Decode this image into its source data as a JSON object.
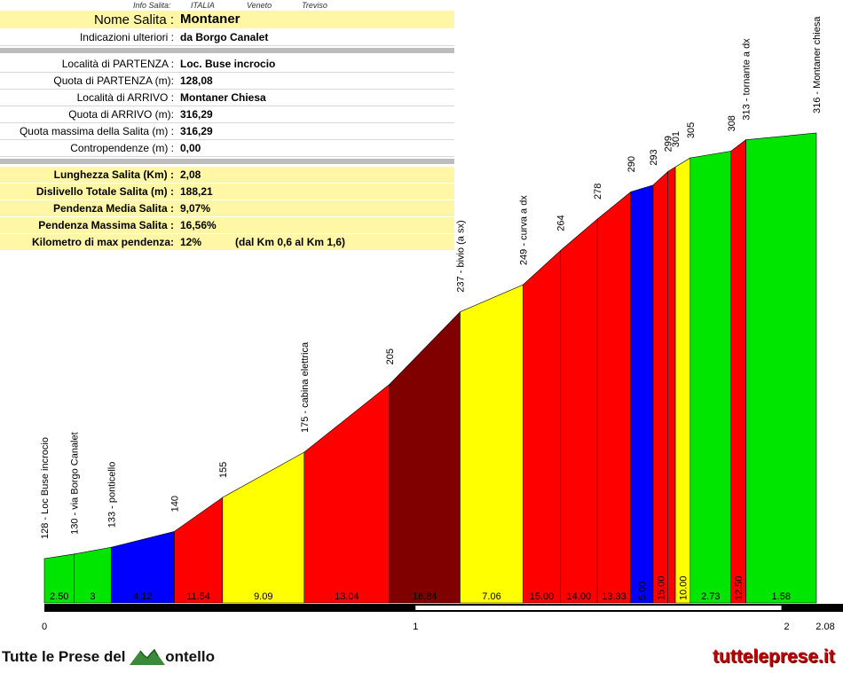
{
  "header": {
    "info_label": "Info Salita:",
    "country": "ITALIA",
    "region": "Veneto",
    "province": "Treviso"
  },
  "climb": {
    "name_label": "Nome Salita :",
    "name": "Montaner",
    "extra_label": "Indicazioni ulteriori :",
    "extra": "da Borgo Canalet",
    "start_place_label": "Località di PARTENZA :",
    "start_place": "Loc. Buse incrocio",
    "start_alt_label": "Quota di PARTENZA (m):",
    "start_alt": "128,08",
    "end_place_label": "Località di ARRIVO :",
    "end_place": "Montaner Chiesa",
    "end_alt_label": "Quota di ARRIVO (m):",
    "end_alt": "316,29",
    "max_alt_label": "Quota massima della Salita (m) :",
    "max_alt": "316,29",
    "counter_label": "Contropendenze (m) :",
    "counter": "0,00"
  },
  "stats": {
    "length_label": "Lunghezza Salita (Km) :",
    "length": "2,08",
    "gain_label": "Dislivello Totale Salita (m) :",
    "gain": "188,21",
    "avg_label": "Pendenza Media Salita :",
    "avg": "9,07%",
    "max_label": "Pendenza Massima Salita :",
    "max": "16,56%",
    "maxkm_label": "Kilometro di max pendenza:",
    "maxkm": "12%",
    "maxkm_note": "(dal Km 0,6 al Km 1,6)"
  },
  "chart_data": {
    "type": "area",
    "x_ticks": [
      "0",
      "1",
      "2",
      "2.08"
    ],
    "x_tick_values": [
      0,
      1,
      2,
      2.08
    ],
    "segments": [
      {
        "x0": 0.0,
        "x1": 0.08,
        "y0": 128,
        "y1": 130,
        "grade": "2.50",
        "color": "#00e600"
      },
      {
        "x0": 0.08,
        "x1": 0.18,
        "y0": 130,
        "y1": 133,
        "grade": "3",
        "color": "#00e600"
      },
      {
        "x0": 0.18,
        "x1": 0.35,
        "y0": 133,
        "y1": 140,
        "grade": "4.12",
        "color": "#0000ff"
      },
      {
        "x0": 0.35,
        "x1": 0.48,
        "y0": 140,
        "y1": 155,
        "grade": "11.54",
        "color": "#ff0000"
      },
      {
        "x0": 0.48,
        "x1": 0.7,
        "y0": 155,
        "y1": 175,
        "grade": "9.09",
        "color": "#ffff00"
      },
      {
        "x0": 0.7,
        "x1": 0.93,
        "y0": 175,
        "y1": 205,
        "grade": "13.04",
        "color": "#ff0000"
      },
      {
        "x0": 0.93,
        "x1": 1.12,
        "y0": 205,
        "y1": 237,
        "grade": "16.84",
        "color": "#800000"
      },
      {
        "x0": 1.12,
        "x1": 1.29,
        "y0": 237,
        "y1": 249,
        "grade": "7.06",
        "color": "#ffff00"
      },
      {
        "x0": 1.29,
        "x1": 1.39,
        "y0": 249,
        "y1": 264,
        "grade": "15.00",
        "color": "#ff0000"
      },
      {
        "x0": 1.39,
        "x1": 1.49,
        "y0": 264,
        "y1": 278,
        "grade": "14.00",
        "color": "#ff0000"
      },
      {
        "x0": 1.49,
        "x1": 1.58,
        "y0": 278,
        "y1": 290,
        "grade": "13.33",
        "color": "#ff0000"
      },
      {
        "x0": 1.58,
        "x1": 1.64,
        "y0": 290,
        "y1": 293,
        "grade": "5.00",
        "color": "#0000ff"
      },
      {
        "x0": 1.64,
        "x1": 1.68,
        "y0": 293,
        "y1": 299,
        "grade": "15.00",
        "color": "#ff0000"
      },
      {
        "x0": 1.68,
        "x1": 1.7,
        "y0": 299,
        "y1": 301,
        "grade": "",
        "color": "#ff0000"
      },
      {
        "x0": 1.7,
        "x1": 1.74,
        "y0": 301,
        "y1": 305,
        "grade": "10.00",
        "color": "#ffff00"
      },
      {
        "x0": 1.74,
        "x1": 1.85,
        "y0": 305,
        "y1": 308,
        "grade": "2.73",
        "color": "#00e600"
      },
      {
        "x0": 1.85,
        "x1": 1.89,
        "y0": 308,
        "y1": 313,
        "grade": "12.50",
        "color": "#ff0000"
      },
      {
        "x0": 1.89,
        "x1": 2.08,
        "y0": 313,
        "y1": 316,
        "grade": "1.58",
        "color": "#00e600"
      }
    ],
    "annotations": [
      {
        "x": 0.0,
        "y": 128,
        "text": "128 - Loc Buse incrocio"
      },
      {
        "x": 0.08,
        "y": 130,
        "text": "130 - via Borgo Canalet"
      },
      {
        "x": 0.18,
        "y": 133,
        "text": "133 - ponticello"
      },
      {
        "x": 0.35,
        "y": 140,
        "text": "140"
      },
      {
        "x": 0.48,
        "y": 155,
        "text": "155"
      },
      {
        "x": 0.7,
        "y": 175,
        "text": "175 - cabina elettrica"
      },
      {
        "x": 0.93,
        "y": 205,
        "text": "205"
      },
      {
        "x": 1.12,
        "y": 237,
        "text": "237 - bivio (a sx)"
      },
      {
        "x": 1.29,
        "y": 249,
        "text": "249 - curva a dx"
      },
      {
        "x": 1.39,
        "y": 264,
        "text": "264"
      },
      {
        "x": 1.49,
        "y": 278,
        "text": "278"
      },
      {
        "x": 1.58,
        "y": 290,
        "text": "290"
      },
      {
        "x": 1.64,
        "y": 293,
        "text": "293"
      },
      {
        "x": 1.68,
        "y": 299,
        "text": "299"
      },
      {
        "x": 1.7,
        "y": 301,
        "text": "301"
      },
      {
        "x": 1.74,
        "y": 305,
        "text": "305"
      },
      {
        "x": 1.85,
        "y": 308,
        "text": "308"
      },
      {
        "x": 1.89,
        "y": 313,
        "text": "313 - tornante a dx"
      },
      {
        "x": 2.08,
        "y": 316,
        "text": "316 - Montaner chiesa"
      }
    ],
    "xlim": [
      0,
      2.08
    ]
  },
  "footer": {
    "left_prefix": "Tutte le Prese del ",
    "left_suffix": "ontello",
    "right": "tutteleprese.it"
  }
}
